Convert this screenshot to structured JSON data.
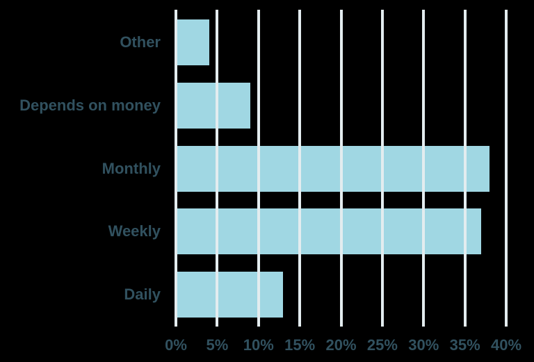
{
  "chart_data": {
    "type": "bar",
    "orientation": "horizontal",
    "title": "",
    "xlabel": "",
    "ylabel": "",
    "categories": [
      "Other",
      "Depends on money",
      "Monthly",
      "Weekly",
      "Daily"
    ],
    "values": [
      4,
      9,
      38,
      37,
      13
    ],
    "unit": "%",
    "x_axis": {
      "min": 0,
      "max": 40,
      "step": 5,
      "tick_labels": [
        "0%",
        "5%",
        "10%",
        "15%",
        "20%",
        "25%",
        "30%",
        "35%",
        "40%"
      ]
    },
    "grid": true,
    "gridlines_over_bars": true,
    "legend": "none",
    "colors": {
      "background": "#000000",
      "bar": "#a0d7e3",
      "gridline": "#e3ecef",
      "label_text": "#31515f"
    }
  }
}
